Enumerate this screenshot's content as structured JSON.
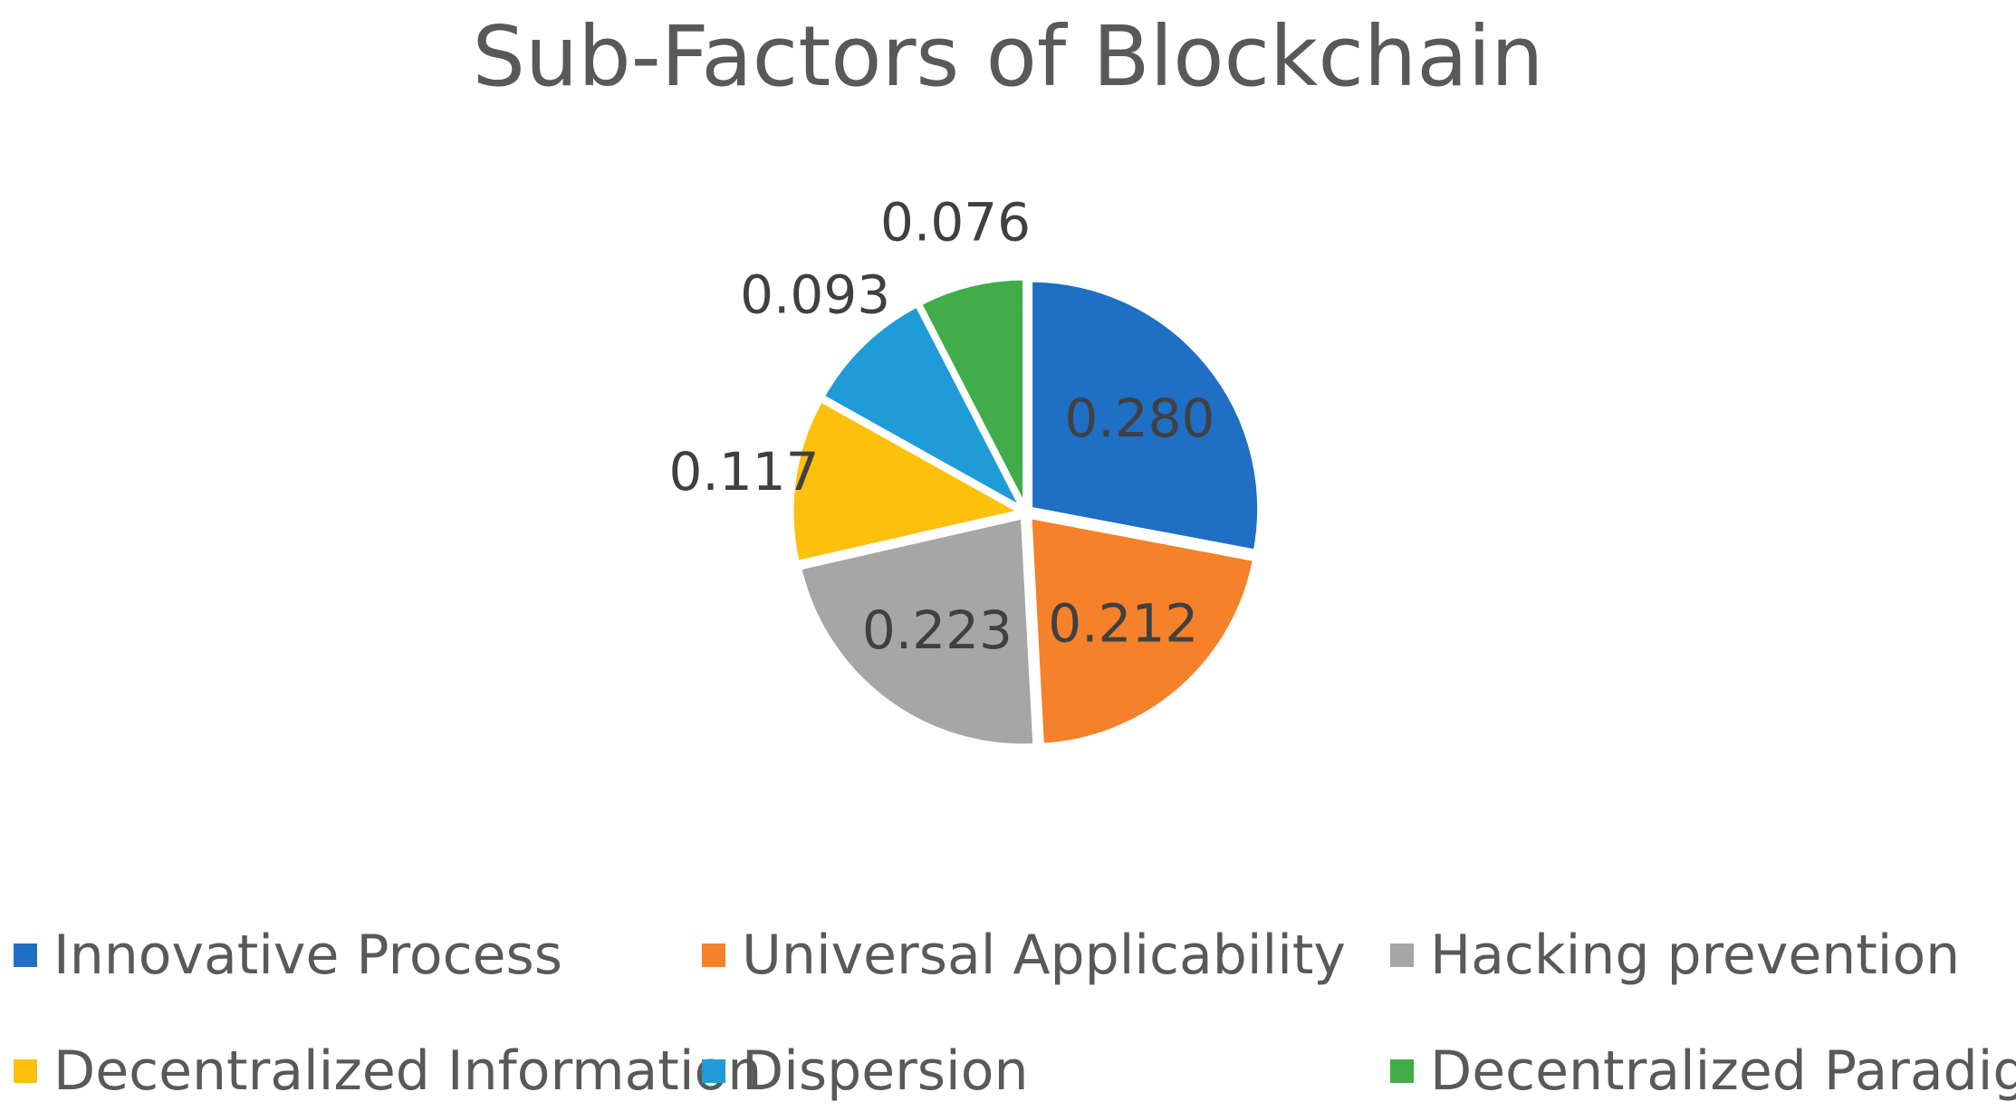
{
  "chart_data": {
    "type": "pie",
    "title": "Sub-Factors of Blockchain",
    "categories": [
      "Innovative Process",
      "Universal Applicability",
      "Hacking prevention",
      "Decentralized Information",
      "Dispersion",
      "Decentralized Paradigm"
    ],
    "values": [
      0.28,
      0.212,
      0.223,
      0.117,
      0.093,
      0.076
    ],
    "labels": [
      "0.280",
      "0.212",
      "0.223",
      "0.117",
      "0.093",
      "0.076"
    ],
    "colors": [
      "#1f6fc5",
      "#f5812a",
      "#a6a6a6",
      "#fcc00d",
      "#1f9cd8",
      "#40ad48"
    ],
    "start_angle_deg": 0,
    "direction": "clockwise",
    "legend_position": "bottom"
  }
}
